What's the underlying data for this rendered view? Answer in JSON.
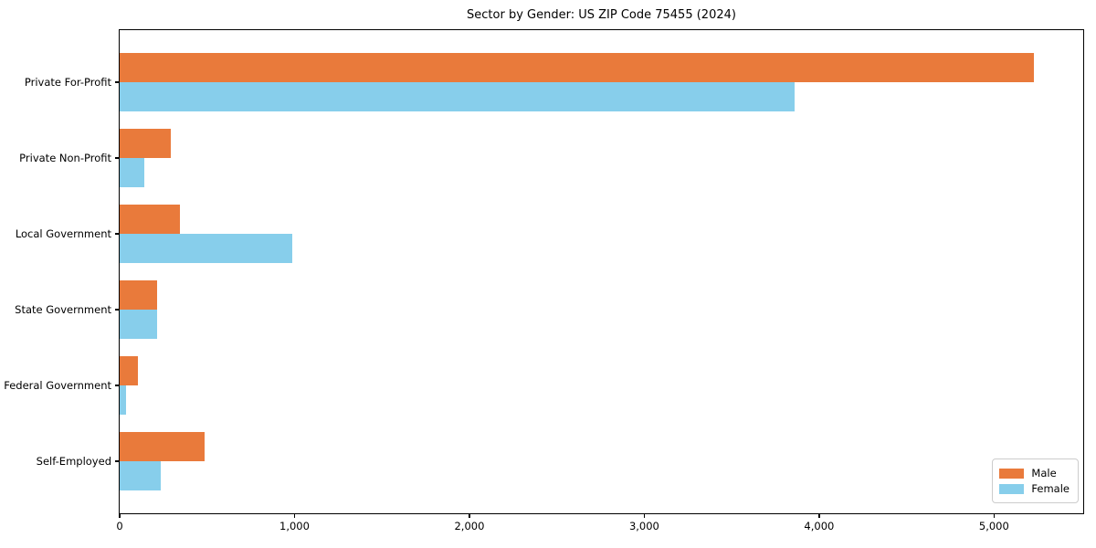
{
  "title": "Sector by Gender: US ZIP Code 75455 (2024)",
  "colors": {
    "male": "#E97A3B",
    "female": "#87CEEB",
    "axis": "#000000",
    "legend_border": "#cccccc",
    "background": "#ffffff"
  },
  "legend": {
    "position": "lower right",
    "items": [
      {
        "label": "Male",
        "swatch": "male-color-swatch"
      },
      {
        "label": "Female",
        "swatch": "female-color-swatch"
      }
    ]
  },
  "chart_data": {
    "type": "bar",
    "orientation": "horizontal",
    "title": "Sector by Gender: US ZIP Code 75455 (2024)",
    "categories": [
      "Private For-Profit",
      "Private Non-Profit",
      "Local Government",
      "State Government",
      "Federal Government",
      "Self-Employed"
    ],
    "series": [
      {
        "name": "Male",
        "color": "#E97A3B",
        "values": [
          5230,
          293,
          343,
          216,
          104,
          487
        ]
      },
      {
        "name": "Female",
        "color": "#87CEEB",
        "values": [
          3860,
          140,
          986,
          216,
          38,
          236
        ]
      }
    ],
    "xlabel": "",
    "ylabel": "",
    "xlim": [
      0,
      5510
    ],
    "x_tick_values": [
      0,
      1000,
      2000,
      3000,
      4000,
      5000
    ],
    "x_tick_labels": [
      "0",
      "1,000",
      "2,000",
      "3,000",
      "4,000",
      "5,000"
    ],
    "grid": false,
    "legend_position": "lower right"
  }
}
